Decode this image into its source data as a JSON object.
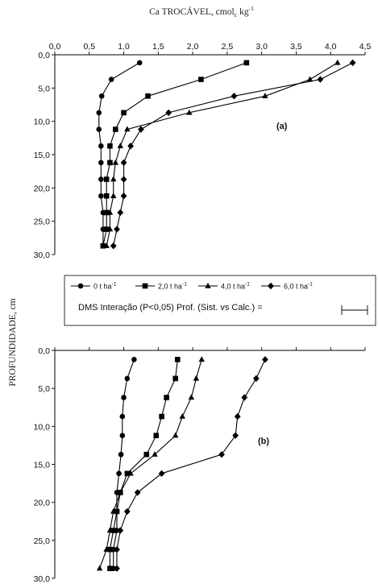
{
  "figure": {
    "top_axis_title": "Ca TROCÁVEL, cmol",
    "top_axis_title_sub": "c",
    "top_axis_title_unit": " kg",
    "top_axis_title_sup": "-1",
    "y_axis_title": "PROFUNDIDADE, cm",
    "dms_label": "DMS Interação (P<0,05) Prof. (Sist. vs Calc.) ="
  },
  "legend": {
    "items": [
      {
        "label": "0 t ha",
        "sup": "-1",
        "marker": "circle"
      },
      {
        "label": "2,0 t ha",
        "sup": "-1",
        "marker": "square"
      },
      {
        "label": "4,0 t ha",
        "sup": "-1",
        "marker": "triangle"
      },
      {
        "label": "6,0 t ha",
        "sup": "-1",
        "marker": "diamond"
      }
    ]
  },
  "chart_data": [
    {
      "type": "line",
      "panel_label": "(a)",
      "x_ticks": [
        "0,0",
        "0,5",
        "1,0",
        "1,5",
        "2,0",
        "2,5",
        "3,0",
        "3,5",
        "4,0",
        "4,5"
      ],
      "y_ticks": [
        "0,0",
        "5,0",
        "10,0",
        "15,0",
        "20,0",
        "25,0",
        "30,0"
      ],
      "xlim": [
        0,
        4.5
      ],
      "ylim": [
        0,
        30
      ],
      "y_inverted": true,
      "x_axis_position": "top",
      "x_tick_labels_shown": true,
      "series": [
        {
          "name": "0 t ha-1",
          "marker": "circle",
          "points": [
            [
              1.23,
              1.2
            ],
            [
              0.82,
              3.7
            ],
            [
              0.68,
              6.2
            ],
            [
              0.64,
              8.7
            ],
            [
              0.64,
              11.2
            ],
            [
              0.67,
              13.7
            ],
            [
              0.67,
              16.2
            ],
            [
              0.67,
              18.7
            ],
            [
              0.67,
              21.2
            ],
            [
              0.7,
              23.7
            ],
            [
              0.7,
              26.2
            ],
            [
              0.7,
              28.7
            ]
          ]
        },
        {
          "name": "2,0 t ha-1",
          "marker": "square",
          "points": [
            [
              2.78,
              1.2
            ],
            [
              2.12,
              3.7
            ],
            [
              1.35,
              6.2
            ],
            [
              1.0,
              8.7
            ],
            [
              0.88,
              11.2
            ],
            [
              0.8,
              13.7
            ],
            [
              0.8,
              16.2
            ],
            [
              0.75,
              18.7
            ],
            [
              0.75,
              21.2
            ],
            [
              0.75,
              23.7
            ],
            [
              0.75,
              26.2
            ],
            [
              0.7,
              28.7
            ]
          ]
        },
        {
          "name": "4,0 t ha-1",
          "marker": "triangle",
          "points": [
            [
              4.1,
              1.2
            ],
            [
              3.7,
              3.7
            ],
            [
              3.05,
              6.2
            ],
            [
              1.95,
              8.7
            ],
            [
              1.05,
              11.2
            ],
            [
              0.95,
              13.7
            ],
            [
              0.88,
              16.2
            ],
            [
              0.85,
              18.7
            ],
            [
              0.85,
              21.2
            ],
            [
              0.8,
              23.7
            ],
            [
              0.8,
              26.2
            ],
            [
              0.75,
              28.7
            ]
          ]
        },
        {
          "name": "6,0 t ha-1",
          "marker": "diamond",
          "points": [
            [
              4.32,
              1.2
            ],
            [
              3.85,
              3.7
            ],
            [
              2.6,
              6.2
            ],
            [
              1.65,
              8.7
            ],
            [
              1.25,
              11.2
            ],
            [
              1.1,
              13.7
            ],
            [
              1.0,
              16.2
            ],
            [
              1.0,
              18.7
            ],
            [
              1.0,
              21.2
            ],
            [
              0.95,
              23.7
            ],
            [
              0.9,
              26.2
            ],
            [
              0.85,
              28.7
            ]
          ]
        }
      ]
    },
    {
      "type": "line",
      "panel_label": "(b)",
      "y_ticks": [
        "0,0",
        "5,0",
        "10,0",
        "15,0",
        "20,0",
        "25,0",
        "30,0"
      ],
      "xlim": [
        0,
        4.5
      ],
      "ylim": [
        0,
        30
      ],
      "y_inverted": true,
      "x_axis_position": "top",
      "x_tick_labels_shown": false,
      "series": [
        {
          "name": "0 t ha-1",
          "marker": "circle",
          "points": [
            [
              1.15,
              1.2
            ],
            [
              1.05,
              3.7
            ],
            [
              1.0,
              6.2
            ],
            [
              0.98,
              8.7
            ],
            [
              0.98,
              11.2
            ],
            [
              0.96,
              13.7
            ],
            [
              0.93,
              16.2
            ],
            [
              0.9,
              18.7
            ],
            [
              0.9,
              21.2
            ],
            [
              0.9,
              23.7
            ],
            [
              0.85,
              26.2
            ],
            [
              0.85,
              28.7
            ]
          ]
        },
        {
          "name": "2,0 t ha-1",
          "marker": "square",
          "points": [
            [
              1.78,
              1.2
            ],
            [
              1.75,
              3.7
            ],
            [
              1.62,
              6.2
            ],
            [
              1.55,
              8.7
            ],
            [
              1.47,
              11.2
            ],
            [
              1.33,
              13.7
            ],
            [
              1.05,
              16.2
            ],
            [
              0.95,
              18.7
            ],
            [
              0.9,
              21.2
            ],
            [
              0.85,
              23.7
            ],
            [
              0.8,
              26.2
            ],
            [
              0.8,
              28.7
            ]
          ]
        },
        {
          "name": "4,0 t ha-1",
          "marker": "triangle",
          "points": [
            [
              2.13,
              1.2
            ],
            [
              2.05,
              3.7
            ],
            [
              1.98,
              6.2
            ],
            [
              1.85,
              8.7
            ],
            [
              1.75,
              11.2
            ],
            [
              1.45,
              13.7
            ],
            [
              1.1,
              16.2
            ],
            [
              0.95,
              18.7
            ],
            [
              0.85,
              21.2
            ],
            [
              0.8,
              23.7
            ],
            [
              0.75,
              26.2
            ],
            [
              0.65,
              28.7
            ]
          ]
        },
        {
          "name": "6,0 t ha-1",
          "marker": "diamond",
          "points": [
            [
              3.05,
              1.2
            ],
            [
              2.92,
              3.7
            ],
            [
              2.75,
              6.2
            ],
            [
              2.65,
              8.7
            ],
            [
              2.62,
              11.2
            ],
            [
              2.42,
              13.7
            ],
            [
              1.55,
              16.2
            ],
            [
              1.2,
              18.7
            ],
            [
              1.05,
              21.2
            ],
            [
              0.95,
              23.7
            ],
            [
              0.9,
              26.2
            ],
            [
              0.9,
              28.7
            ]
          ]
        }
      ]
    }
  ]
}
